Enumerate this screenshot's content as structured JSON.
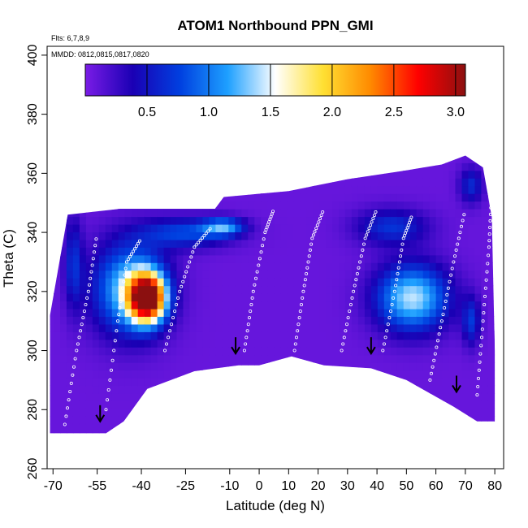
{
  "chart_data": {
    "type": "heatmap",
    "title": "ATOM1 Northbound PPN_GMI",
    "subtitle_flights": "Flts: 6,7,8,9",
    "subtitle_dates": "MMDD: 0812,0815,0817,0820",
    "xlabel": "Latitude (deg N)",
    "ylabel": "Theta (C)",
    "xlim": [
      -72,
      83
    ],
    "ylim": [
      260,
      403
    ],
    "x_ticks": [
      -70,
      -55,
      -40,
      -25,
      -10,
      0,
      10,
      20,
      30,
      40,
      50,
      60,
      70,
      80
    ],
    "y_ticks": [
      260,
      280,
      300,
      320,
      340,
      360,
      380,
      400
    ],
    "colorbar": {
      "range": [
        0,
        3.08
      ],
      "ticks": [
        0.5,
        1.0,
        1.5,
        2.0,
        2.5,
        3.0
      ],
      "tick_labels": [
        "0.5",
        "1.0",
        "1.5",
        "2.0",
        "2.5",
        "3.0"
      ],
      "colors": [
        "#7a1ce6",
        "#1a00b4",
        "#0040e0",
        "#1ea0ff",
        "#ffffff",
        "#ffe033",
        "#ff8a00",
        "#ff0000",
        "#8b1010"
      ]
    },
    "background_value": 0.08,
    "domain_top": [
      [
        -71,
        312
      ],
      [
        -65,
        346
      ],
      [
        -47,
        348
      ],
      [
        -28,
        348
      ],
      [
        -15,
        348
      ],
      [
        -12,
        352
      ],
      [
        10,
        354
      ],
      [
        30,
        358
      ],
      [
        50,
        361
      ],
      [
        62,
        363
      ],
      [
        70,
        366
      ],
      [
        76,
        362
      ],
      [
        79,
        345
      ],
      [
        80,
        300
      ]
    ],
    "domain_bottom": [
      [
        -71,
        272
      ],
      [
        -52,
        272
      ],
      [
        -46,
        276
      ],
      [
        -38,
        287
      ],
      [
        -22,
        293
      ],
      [
        -7,
        295
      ],
      [
        0,
        295
      ],
      [
        11,
        298
      ],
      [
        22,
        295
      ],
      [
        38,
        294
      ],
      [
        50,
        290
      ],
      [
        66,
        281
      ],
      [
        74,
        276
      ],
      [
        80,
        276
      ]
    ],
    "hotspots": [
      {
        "lat": -38,
        "theta": 318,
        "peak": 3.0,
        "sx": 6,
        "sy": 8
      },
      {
        "lat": -44,
        "theta": 321,
        "peak": 1.25,
        "sx": 12,
        "sy": 15
      },
      {
        "lat": 52,
        "theta": 318,
        "peak": 1.35,
        "sx": 12,
        "sy": 11
      },
      {
        "lat": -12,
        "theta": 342,
        "peak": 0.95,
        "sx": 7,
        "sy": 3
      },
      {
        "lat": -25,
        "theta": 340,
        "peak": 0.7,
        "sx": 15,
        "sy": 5
      },
      {
        "lat": 45,
        "theta": 342,
        "peak": 0.6,
        "sx": 12,
        "sy": 6
      },
      {
        "lat": 72,
        "theta": 356,
        "peak": 0.55,
        "sx": 4,
        "sy": 6
      },
      {
        "lat": -63,
        "theta": 330,
        "peak": 0.55,
        "sx": 3,
        "sy": 15
      },
      {
        "lat": 72,
        "theta": 310,
        "peak": 0.6,
        "sx": 3,
        "sy": 8
      }
    ],
    "arrows": [
      {
        "lat": -54,
        "theta": 276
      },
      {
        "lat": -8,
        "theta": 299
      },
      {
        "lat": 38,
        "theta": 299
      },
      {
        "lat": 67,
        "theta": 286
      }
    ],
    "sample_tracks": [
      [
        [
          -66,
          275
        ],
        [
          -62,
          300
        ],
        [
          -58,
          320
        ],
        [
          -55,
          340
        ]
      ],
      [
        [
          -52,
          280
        ],
        [
          -48,
          310
        ],
        [
          -45,
          330
        ],
        [
          -40,
          338
        ]
      ],
      [
        [
          -32,
          300
        ],
        [
          -27,
          320
        ],
        [
          -22,
          335
        ],
        [
          -16,
          342
        ]
      ],
      [
        [
          -5,
          300
        ],
        [
          -2,
          320
        ],
        [
          2,
          340
        ],
        [
          5,
          348
        ]
      ],
      [
        [
          12,
          300
        ],
        [
          15,
          320
        ],
        [
          18,
          338
        ],
        [
          22,
          348
        ]
      ],
      [
        [
          28,
          300
        ],
        [
          32,
          320
        ],
        [
          36,
          338
        ],
        [
          40,
          348
        ]
      ],
      [
        [
          42,
          300
        ],
        [
          46,
          320
        ],
        [
          49,
          338
        ],
        [
          52,
          346
        ]
      ],
      [
        [
          58,
          290
        ],
        [
          62,
          310
        ],
        [
          66,
          330
        ],
        [
          70,
          348
        ]
      ],
      [
        [
          74,
          285
        ],
        [
          76,
          310
        ],
        [
          78,
          335
        ],
        [
          79,
          355
        ]
      ]
    ]
  }
}
